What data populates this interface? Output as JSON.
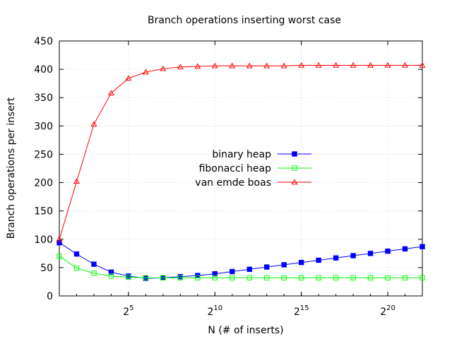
{
  "chart_data": {
    "type": "line",
    "title": "Branch operations inserting worst case",
    "xlabel": "N (# of inserts)",
    "ylabel": "Branch operations per insert",
    "x_scale": "log2",
    "x": [
      2,
      4,
      8,
      16,
      32,
      64,
      128,
      256,
      512,
      1024,
      2048,
      4096,
      8192,
      16384,
      32768,
      65536,
      131072,
      262144,
      524288,
      1048576,
      2097152,
      4194304
    ],
    "xlim": [
      2,
      4194304
    ],
    "ylim": [
      0,
      450
    ],
    "x_ticks": [
      {
        "value": 32,
        "base": "2",
        "exp": "5"
      },
      {
        "value": 1024,
        "base": "2",
        "exp": "10"
      },
      {
        "value": 32768,
        "base": "2",
        "exp": "15"
      },
      {
        "value": 1048576,
        "base": "2",
        "exp": "20"
      }
    ],
    "y_ticks": [
      "0",
      "50",
      "100",
      "150",
      "200",
      "250",
      "300",
      "350",
      "400",
      "450"
    ],
    "grid": true,
    "legend_position": "center",
    "series": [
      {
        "name": "binary heap",
        "color": "#0000ff",
        "marker": "filled-square",
        "values": [
          94,
          74,
          56,
          42,
          35,
          31,
          32,
          34,
          36,
          39,
          43,
          47,
          51,
          55,
          59,
          63,
          67,
          71,
          75,
          79,
          83,
          87
        ]
      },
      {
        "name": "fibonacci heap",
        "color": "#00ff00",
        "marker": "open-square",
        "values": [
          70,
          49,
          40,
          35,
          33,
          32,
          32,
          32,
          32,
          32,
          32,
          32,
          32,
          32,
          32,
          32,
          32,
          32,
          32,
          32,
          32,
          32
        ]
      },
      {
        "name": "van emde boas",
        "color": "#ff0000",
        "marker": "open-triangle",
        "values": [
          100,
          202,
          303,
          358,
          384,
          395,
          401,
          404,
          405,
          406,
          406,
          406,
          406,
          406,
          407,
          407,
          407,
          407,
          407,
          407,
          407,
          407
        ]
      }
    ]
  }
}
